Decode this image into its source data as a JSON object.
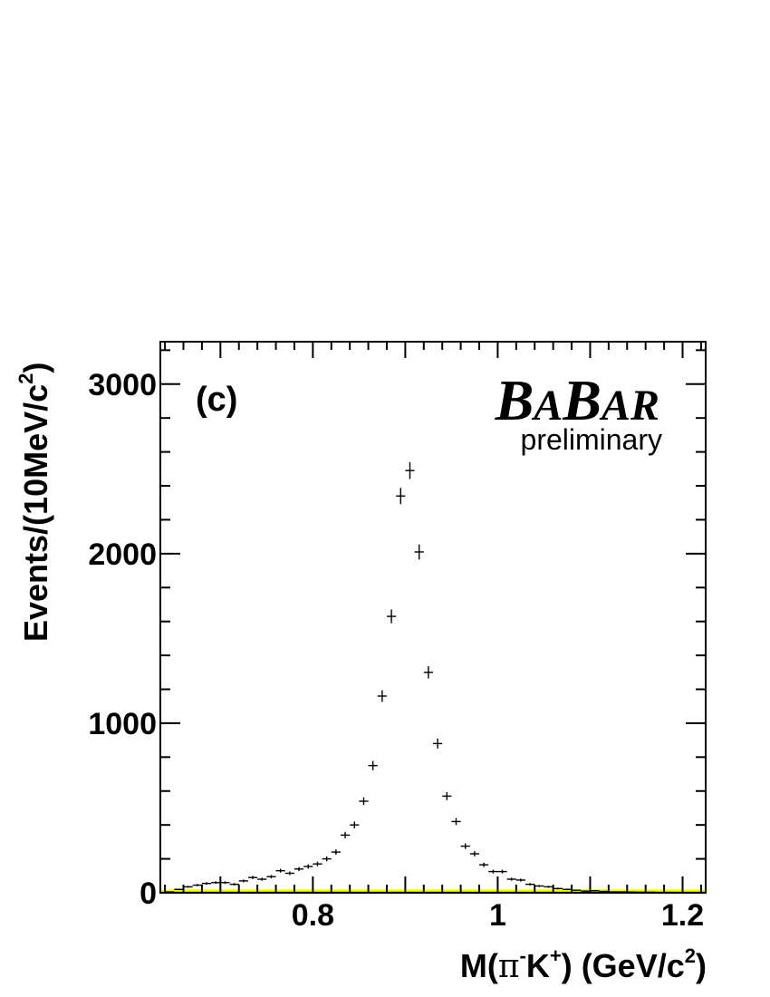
{
  "chart_data": {
    "type": "scatter",
    "style": "histogram points with error bars",
    "panel_label": "(c)",
    "experiment": {
      "big1": "B",
      "small1": "A",
      "big2": "B",
      "small2": "AR"
    },
    "status": "preliminary",
    "xlabel": {
      "base": "M(",
      "pi": "π",
      "minus": "-",
      "k": "K",
      "plus": "+",
      "units": ") (GeV/c",
      "pow": "2",
      "close": ")"
    },
    "ylabel": {
      "main": "Events/(10MeV/c",
      "pow": "2",
      "close": ")"
    },
    "xlim": [
      0.635,
      1.225
    ],
    "ylim": [
      0,
      3250
    ],
    "x_ticks": [
      0.8,
      1.0,
      1.2
    ],
    "x_tick_labels": [
      "0.8",
      "1",
      "1.2"
    ],
    "y_ticks": [
      0,
      1000,
      2000,
      3000
    ],
    "y_tick_labels": [
      "0",
      "1000",
      "2000",
      "3000"
    ],
    "bin_width": 0.01,
    "x": [
      0.645,
      0.655,
      0.665,
      0.675,
      0.685,
      0.695,
      0.705,
      0.715,
      0.725,
      0.735,
      0.745,
      0.755,
      0.765,
      0.775,
      0.785,
      0.795,
      0.805,
      0.815,
      0.825,
      0.835,
      0.845,
      0.855,
      0.865,
      0.875,
      0.885,
      0.895,
      0.905,
      0.915,
      0.925,
      0.935,
      0.945,
      0.955,
      0.965,
      0.975,
      0.985,
      0.995,
      1.005,
      1.015,
      1.025,
      1.035,
      1.045,
      1.055,
      1.065,
      1.075,
      1.085,
      1.095,
      1.105,
      1.115,
      1.125,
      1.135,
      1.145,
      1.155,
      1.165,
      1.175,
      1.185,
      1.195,
      1.205,
      1.215
    ],
    "y": [
      5,
      20,
      35,
      45,
      55,
      60,
      60,
      50,
      70,
      90,
      80,
      95,
      130,
      115,
      140,
      155,
      170,
      200,
      240,
      340,
      400,
      540,
      750,
      1160,
      1630,
      2340,
      2490,
      2010,
      1300,
      880,
      570,
      420,
      275,
      230,
      165,
      125,
      125,
      80,
      75,
      50,
      40,
      35,
      25,
      20,
      15,
      10,
      12,
      8,
      5,
      5,
      4,
      3,
      3,
      2,
      2,
      1,
      1,
      1
    ],
    "background": {
      "colors": [
        "#ffff00",
        "#66cc00"
      ],
      "level": 20
    }
  }
}
